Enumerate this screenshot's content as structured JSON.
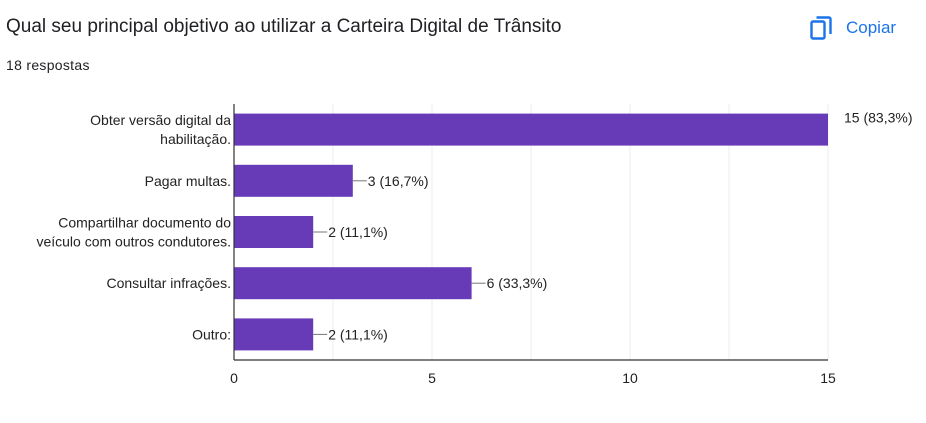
{
  "question": {
    "title": "Qual seu principal objetivo ao utilizar a Carteira Digital de Trânsito",
    "responses": "18 respostas"
  },
  "actions": {
    "copy_label": "Copiar",
    "copy_icon": "copy-icon"
  },
  "colors": {
    "bar": "#673ab7",
    "axis": "#333333",
    "grid": "#eeeeee",
    "text": "#222222",
    "accent": "#1a73e8"
  },
  "chart_data": {
    "type": "bar",
    "orientation": "horizontal",
    "title": "",
    "xlabel": "",
    "ylabel": "",
    "categories": [
      [
        "Obter versão digital da",
        "habilitação."
      ],
      [
        "Pagar multas."
      ],
      [
        "Compartilhar documento do",
        "veículo com outros condutores."
      ],
      [
        "Consultar infrações."
      ],
      [
        "Outro:"
      ]
    ],
    "values": [
      15,
      3,
      2,
      6,
      2
    ],
    "data_labels": [
      "15 (83,3%)",
      "3 (16,7%)",
      "2 (11,1%)",
      "6 (33,3%)",
      "2 (11,1%)"
    ],
    "xlim": [
      0,
      15
    ],
    "ticks": [
      0,
      5,
      10,
      15
    ],
    "grid": true
  }
}
